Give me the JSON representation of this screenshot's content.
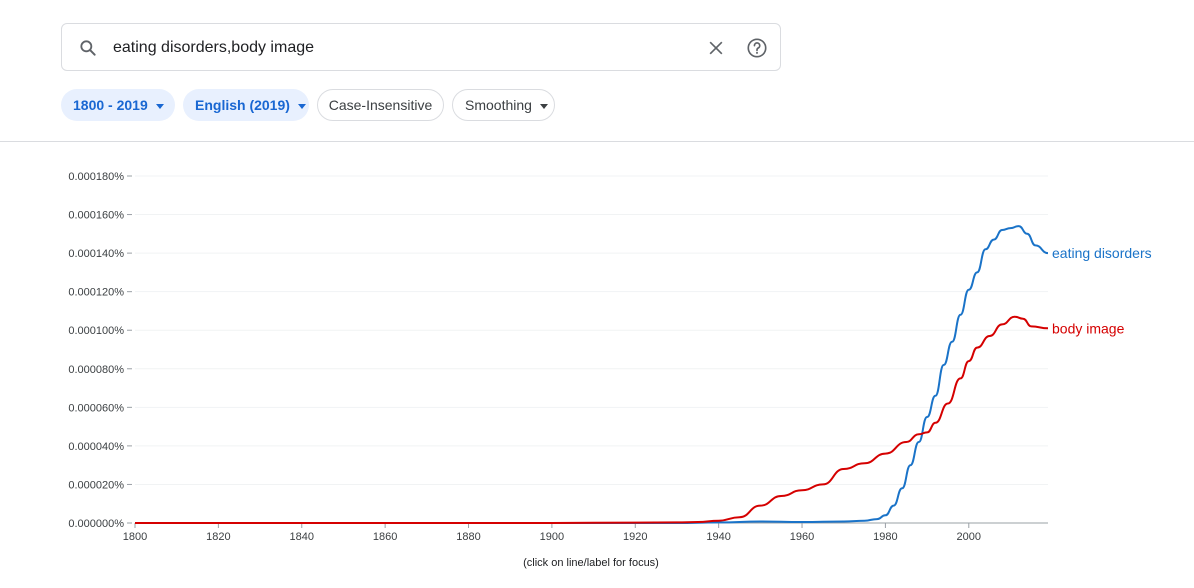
{
  "search": {
    "value": "eating disorders,body image"
  },
  "filters": {
    "year_range": "1800 - 2019",
    "corpus": "English (2019)",
    "case": "Case-Insensitive",
    "smoothing": "Smoothing"
  },
  "footnote": "(click on line/label for focus)",
  "colors": {
    "accent": "#1a73e8",
    "series_blue": "#1a73c8",
    "series_red": "#d50000",
    "chip_bg": "#e8f0fe"
  },
  "icons": {
    "search": "search-icon",
    "clear": "close-icon",
    "help": "help-icon",
    "dropdown": "caret-down-icon"
  },
  "chart_data": {
    "type": "line",
    "x_ticks": [
      1800,
      1820,
      1840,
      1860,
      1880,
      1900,
      1920,
      1940,
      1960,
      1980,
      2000
    ],
    "xlim": [
      1800,
      2019
    ],
    "y_ticks": [
      "0.000000%",
      "0.000020%",
      "0.000040%",
      "0.000060%",
      "0.000080%",
      "0.000100%",
      "0.000120%",
      "0.000140%",
      "0.000160%",
      "0.000180%"
    ],
    "ylim": [
      0,
      0.00018
    ],
    "grid": true,
    "legend": "end-of-line labels",
    "series": [
      {
        "name": "eating disorders",
        "color": "#1a73c8",
        "points": [
          [
            1800,
            0
          ],
          [
            1900,
            0
          ],
          [
            1930,
            0
          ],
          [
            1940,
            3e-07
          ],
          [
            1950,
            8e-07
          ],
          [
            1960,
            5e-07
          ],
          [
            1970,
            8e-07
          ],
          [
            1975,
            1.2e-06
          ],
          [
            1978,
            2e-06
          ],
          [
            1980,
            4e-06
          ],
          [
            1982,
            9e-06
          ],
          [
            1984,
            1.8e-05
          ],
          [
            1986,
            3e-05
          ],
          [
            1988,
            4.2e-05
          ],
          [
            1990,
            5.5e-05
          ],
          [
            1992,
            6.6e-05
          ],
          [
            1994,
            8.2e-05
          ],
          [
            1996,
            9.4e-05
          ],
          [
            1998,
            0.000108
          ],
          [
            2000,
            0.000121
          ],
          [
            2002,
            0.00013
          ],
          [
            2004,
            0.000142
          ],
          [
            2006,
            0.000147
          ],
          [
            2008,
            0.000152
          ],
          [
            2010,
            0.000153
          ],
          [
            2012,
            0.000154
          ],
          [
            2014,
            0.00015
          ],
          [
            2016,
            0.000144
          ],
          [
            2019,
            0.00014
          ]
        ]
      },
      {
        "name": "body image",
        "color": "#d50000",
        "points": [
          [
            1800,
            0
          ],
          [
            1900,
            0
          ],
          [
            1920,
            2e-07
          ],
          [
            1930,
            3e-07
          ],
          [
            1935,
            5e-07
          ],
          [
            1940,
            1.2e-06
          ],
          [
            1945,
            3e-06
          ],
          [
            1950,
            9e-06
          ],
          [
            1955,
            1.4e-05
          ],
          [
            1960,
            1.7e-05
          ],
          [
            1965,
            2e-05
          ],
          [
            1970,
            2.8e-05
          ],
          [
            1975,
            3.1e-05
          ],
          [
            1980,
            3.6e-05
          ],
          [
            1985,
            4.2e-05
          ],
          [
            1988,
            4.6e-05
          ],
          [
            1990,
            4.7e-05
          ],
          [
            1992,
            5.2e-05
          ],
          [
            1995,
            6.2e-05
          ],
          [
            1998,
            7.5e-05
          ],
          [
            2000,
            8.4e-05
          ],
          [
            2002,
            9.1e-05
          ],
          [
            2005,
            9.7e-05
          ],
          [
            2008,
            0.000103
          ],
          [
            2011,
            0.000107
          ],
          [
            2013,
            0.000106
          ],
          [
            2015,
            0.000102
          ],
          [
            2019,
            0.000101
          ]
        ]
      }
    ]
  }
}
